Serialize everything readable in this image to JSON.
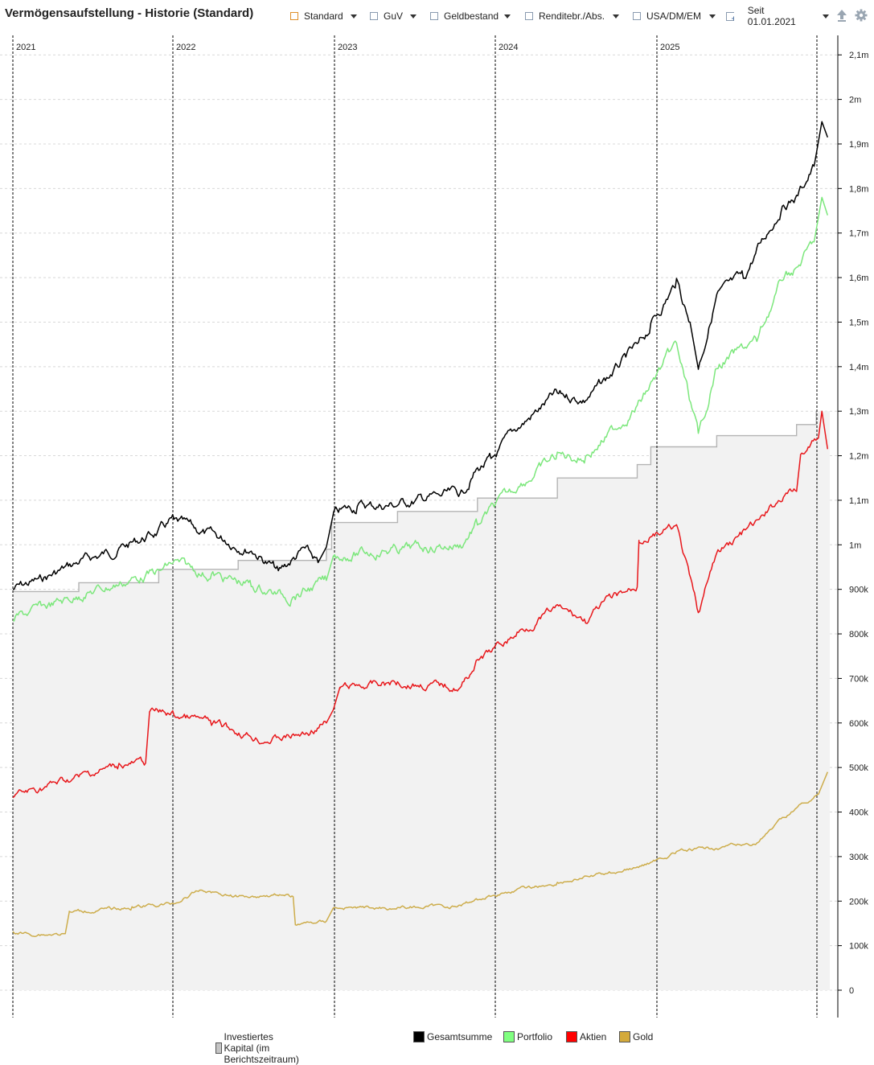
{
  "title": "Vermögensaufstellung - Historie (Standard)",
  "toolbar": {
    "items": [
      {
        "label": "Standard",
        "icon": "checkbox-orange-icon"
      },
      {
        "label": "GuV",
        "icon": "checkbox-icon"
      },
      {
        "label": "Geldbestand",
        "icon": "checkbox-icon"
      },
      {
        "label": "Renditebr./Abs.",
        "icon": "checkbox-icon"
      },
      {
        "label": "USA/DM/EM",
        "icon": "checkbox-icon"
      }
    ],
    "period": "Seit 01.01.2021",
    "upload_icon": "upload-icon",
    "settings_icon": "gear-icon"
  },
  "chart_data": {
    "type": "line",
    "title": "",
    "xlabel": "",
    "ylabel": "",
    "x_range": [
      "2021-01-01",
      "2026-02-15"
    ],
    "year_labels": [
      "2021",
      "2022",
      "2023",
      "2024",
      "2025"
    ],
    "y_ticks": [
      "0",
      "100k",
      "200k",
      "300k",
      "400k",
      "500k",
      "600k",
      "700k",
      "800k",
      "900k",
      "1m",
      "1,1m",
      "1,2m",
      "1,3m",
      "1,4m",
      "1,5m",
      "1,6m",
      "1,7m",
      "1,8m",
      "1,9m",
      "2m",
      "2,1m"
    ],
    "ylim": [
      0,
      2150000
    ],
    "grid": true,
    "legend_position": "bottom",
    "series": [
      {
        "name": "Investiertes Kapital (im Berichtszeitraum)",
        "color": "#b4b4b4",
        "fill": "#f2f2f2",
        "points": [
          [
            "2021-01-01",
            895000
          ],
          [
            "2021-06-01",
            915000
          ],
          [
            "2021-12-01",
            945000
          ],
          [
            "2022-06-01",
            965000
          ],
          [
            "2022-12-20",
            990000
          ],
          [
            "2023-01-01",
            1050000
          ],
          [
            "2023-06-01",
            1075000
          ],
          [
            "2023-12-01",
            1105000
          ],
          [
            "2024-06-01",
            1150000
          ],
          [
            "2024-12-01",
            1180000
          ],
          [
            "2025-01-01",
            1220000
          ],
          [
            "2025-06-01",
            1245000
          ],
          [
            "2025-12-01",
            1270000
          ],
          [
            "2026-01-15",
            1300000
          ]
        ]
      },
      {
        "name": "Gesamtsumme",
        "color": "#000000",
        "points": [
          [
            "2021-01-01",
            900000
          ],
          [
            "2021-03-01",
            920000
          ],
          [
            "2021-06-01",
            960000
          ],
          [
            "2021-09-01",
            990000
          ],
          [
            "2021-12-01",
            1030000
          ],
          [
            "2022-01-05",
            1055000
          ],
          [
            "2022-03-01",
            1030000
          ],
          [
            "2022-05-01",
            1010000
          ],
          [
            "2022-07-01",
            990000
          ],
          [
            "2022-09-01",
            940000
          ],
          [
            "2022-11-01",
            990000
          ],
          [
            "2022-12-01",
            960000
          ],
          [
            "2022-12-20",
            995000
          ],
          [
            "2023-01-05",
            1070000
          ],
          [
            "2023-03-01",
            1085000
          ],
          [
            "2023-06-01",
            1090000
          ],
          [
            "2023-09-01",
            1110000
          ],
          [
            "2023-10-25",
            1115000
          ],
          [
            "2023-12-01",
            1170000
          ],
          [
            "2024-01-01",
            1190000
          ],
          [
            "2024-03-01",
            1260000
          ],
          [
            "2024-06-01",
            1340000
          ],
          [
            "2024-08-05",
            1325000
          ],
          [
            "2024-10-01",
            1380000
          ],
          [
            "2024-12-01",
            1445000
          ],
          [
            "2025-01-01",
            1490000
          ],
          [
            "2025-03-01",
            1590000
          ],
          [
            "2025-04-01",
            1500000
          ],
          [
            "2025-04-20",
            1395000
          ],
          [
            "2025-06-01",
            1560000
          ],
          [
            "2025-08-01",
            1600000
          ],
          [
            "2025-09-01",
            1660000
          ],
          [
            "2025-11-01",
            1765000
          ],
          [
            "2025-12-01",
            1780000
          ],
          [
            "2026-01-10",
            1850000
          ],
          [
            "2026-01-28",
            1950000
          ],
          [
            "2026-02-10",
            1915000
          ]
        ]
      },
      {
        "name": "Portfolio",
        "color": "#7ce77c",
        "points": [
          [
            "2021-01-01",
            835000
          ],
          [
            "2021-06-01",
            885000
          ],
          [
            "2021-12-01",
            940000
          ],
          [
            "2022-01-05",
            960000
          ],
          [
            "2022-04-01",
            930000
          ],
          [
            "2022-07-01",
            910000
          ],
          [
            "2022-10-01",
            880000
          ],
          [
            "2022-12-20",
            920000
          ],
          [
            "2023-01-05",
            975000
          ],
          [
            "2023-06-01",
            990000
          ],
          [
            "2023-10-25",
            1000000
          ],
          [
            "2023-12-01",
            1050000
          ],
          [
            "2024-03-01",
            1130000
          ],
          [
            "2024-06-01",
            1200000
          ],
          [
            "2024-08-05",
            1195000
          ],
          [
            "2024-12-01",
            1310000
          ],
          [
            "2025-03-01",
            1450000
          ],
          [
            "2025-04-20",
            1245000
          ],
          [
            "2025-06-01",
            1400000
          ],
          [
            "2025-09-01",
            1460000
          ],
          [
            "2025-11-01",
            1600000
          ],
          [
            "2025-12-01",
            1620000
          ],
          [
            "2026-01-10",
            1680000
          ],
          [
            "2026-01-28",
            1780000
          ],
          [
            "2026-02-10",
            1740000
          ]
        ]
      },
      {
        "name": "Aktien",
        "color": "#e8171b",
        "points": [
          [
            "2021-01-01",
            435000
          ],
          [
            "2021-06-01",
            480000
          ],
          [
            "2021-09-01",
            505000
          ],
          [
            "2021-11-01",
            510000
          ],
          [
            "2021-11-10",
            625000
          ],
          [
            "2022-01-05",
            620000
          ],
          [
            "2022-04-01",
            600000
          ],
          [
            "2022-08-01",
            560000
          ],
          [
            "2022-11-01",
            575000
          ],
          [
            "2022-12-20",
            600000
          ],
          [
            "2023-01-05",
            630000
          ],
          [
            "2023-01-20",
            680000
          ],
          [
            "2023-06-01",
            690000
          ],
          [
            "2023-10-25",
            680000
          ],
          [
            "2023-12-01",
            740000
          ],
          [
            "2024-03-01",
            800000
          ],
          [
            "2024-06-01",
            860000
          ],
          [
            "2024-08-05",
            830000
          ],
          [
            "2024-10-01",
            880000
          ],
          [
            "2024-12-01",
            905000
          ],
          [
            "2024-12-05",
            1010000
          ],
          [
            "2025-03-01",
            1040000
          ],
          [
            "2025-04-20",
            845000
          ],
          [
            "2025-06-01",
            980000
          ],
          [
            "2025-09-01",
            1050000
          ],
          [
            "2025-11-01",
            1110000
          ],
          [
            "2025-12-01",
            1120000
          ],
          [
            "2025-12-10",
            1200000
          ],
          [
            "2026-01-20",
            1240000
          ],
          [
            "2026-01-28",
            1300000
          ],
          [
            "2026-02-10",
            1215000
          ]
        ]
      },
      {
        "name": "Gold",
        "color": "#cdad4c",
        "points": [
          [
            "2021-01-01",
            130000
          ],
          [
            "2021-03-01",
            125000
          ],
          [
            "2021-05-01",
            127000
          ],
          [
            "2021-05-10",
            175000
          ],
          [
            "2021-10-01",
            185000
          ],
          [
            "2022-01-05",
            195000
          ],
          [
            "2022-03-08",
            225000
          ],
          [
            "2022-06-01",
            210000
          ],
          [
            "2022-09-01",
            215000
          ],
          [
            "2022-10-05",
            210000
          ],
          [
            "2022-10-10",
            148000
          ],
          [
            "2022-12-20",
            155000
          ],
          [
            "2023-01-05",
            185000
          ],
          [
            "2023-06-01",
            185000
          ],
          [
            "2023-10-25",
            190000
          ],
          [
            "2023-12-01",
            205000
          ],
          [
            "2024-03-01",
            225000
          ],
          [
            "2024-06-01",
            240000
          ],
          [
            "2024-10-01",
            265000
          ],
          [
            "2024-12-01",
            275000
          ],
          [
            "2025-03-01",
            310000
          ],
          [
            "2025-06-01",
            320000
          ],
          [
            "2025-09-01",
            330000
          ],
          [
            "2025-11-01",
            385000
          ],
          [
            "2025-12-01",
            410000
          ],
          [
            "2026-01-20",
            440000
          ],
          [
            "2026-02-10",
            490000
          ]
        ]
      }
    ]
  },
  "legend": [
    {
      "label": "Investiertes Kapital (im Berichtszeitraum)",
      "color": "#c4c4c4"
    },
    {
      "label": "Gesamtsumme",
      "color": "#000000"
    },
    {
      "label": "Portfolio",
      "color": "#80ff80"
    },
    {
      "label": "Aktien",
      "color": "#ff0000"
    },
    {
      "label": "Gold",
      "color": "#d4aa3b"
    }
  ]
}
